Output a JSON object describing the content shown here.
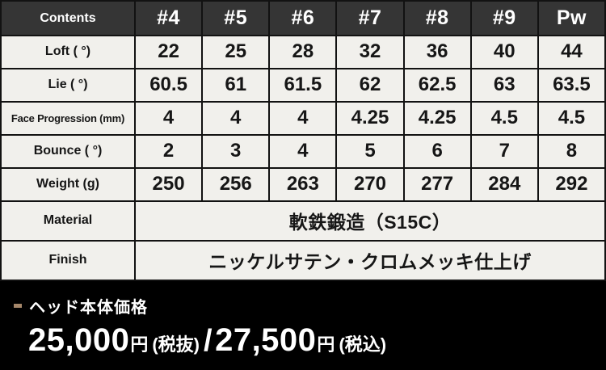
{
  "chart_data": {
    "type": "table",
    "title": "",
    "columns": [
      "Contents",
      "#4",
      "#5",
      "#6",
      "#7",
      "#8",
      "#9",
      "Pw"
    ],
    "rows": [
      [
        "Loft ( °)",
        22,
        25,
        28,
        32,
        36,
        40,
        44
      ],
      [
        "Lie ( °)",
        60.5,
        61,
        61.5,
        62,
        62.5,
        63,
        63.5
      ],
      [
        "Face Progression (mm)",
        4,
        4,
        4,
        4.25,
        4.25,
        4.5,
        4.5
      ],
      [
        "Bounce ( °)",
        2,
        3,
        4,
        5,
        6,
        7,
        8
      ],
      [
        "Weight (g)",
        250,
        256,
        263,
        270,
        277,
        284,
        292
      ],
      [
        "Material",
        "軟鉄鍛造（S15C）"
      ],
      [
        "Finish",
        "ニッケルサテン・クロムメッキ仕上げ"
      ]
    ],
    "footnote": "ヘッド本体価格 25,000円(税抜)/27,500円(税込)"
  },
  "table": {
    "header": [
      "Contents",
      "#4",
      "#5",
      "#6",
      "#7",
      "#8",
      "#9",
      "Pw"
    ],
    "rows": [
      {
        "label": "Loft ( °)",
        "values": [
          "22",
          "25",
          "28",
          "32",
          "36",
          "40",
          "44"
        ]
      },
      {
        "label": "Lie ( °)",
        "values": [
          "60.5",
          "61",
          "61.5",
          "62",
          "62.5",
          "63",
          "63.5"
        ]
      },
      {
        "label": "Face Progression (mm)",
        "values": [
          "4",
          "4",
          "4",
          "4.25",
          "4.25",
          "4.5",
          "4.5"
        ]
      },
      {
        "label": "Bounce ( °)",
        "values": [
          "2",
          "3",
          "4",
          "5",
          "6",
          "7",
          "8"
        ]
      },
      {
        "label": "Weight (g)",
        "values": [
          "250",
          "256",
          "263",
          "270",
          "277",
          "284",
          "292"
        ]
      },
      {
        "label": "Material",
        "span_value": "軟鉄鍛造（S15C）"
      },
      {
        "label": "Finish",
        "span_value": "ニッケルサテン・クロムメッキ仕上げ"
      }
    ]
  },
  "footer": {
    "title": "ヘッド本体価格",
    "price_excl": "25,000",
    "unit_excl": "円",
    "note_excl": "(税抜)",
    "separator": "/",
    "price_incl": "27,500",
    "unit_incl": "円",
    "note_incl": "(税込)"
  },
  "colors": {
    "header_bg": "#353535",
    "header_text": "#ffffff",
    "cell_bg": "#f1f0ec",
    "cell_text": "#161616",
    "border": "#121212",
    "footer_bg": "#000000",
    "footer_text": "#ffffff",
    "dash_accent": "#a5876a"
  }
}
